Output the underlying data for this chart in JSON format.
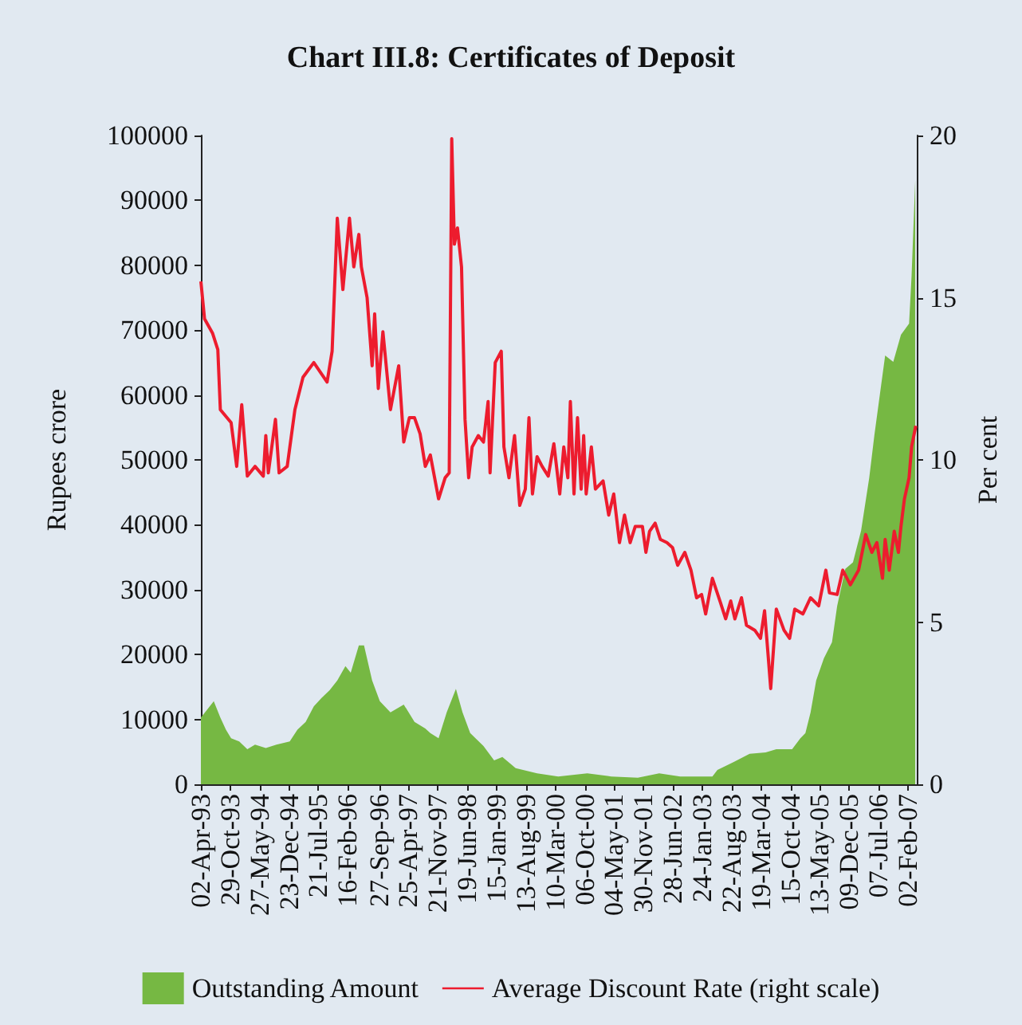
{
  "chart_data": {
    "type": "line",
    "title": "Chart III.8: Certificates of Deposit",
    "ylabel": "Rupees crore",
    "y2label": "Per cent",
    "legend": "bottom",
    "marker": "none",
    "grid": false,
    "xlim": [
      "1993-04-02",
      "2007-04-06"
    ],
    "xticks": [
      {
        "value": "1993-04-02",
        "label": "02-Apr-93"
      },
      {
        "value": "1993-10-29",
        "label": "29-Oct-93"
      },
      {
        "value": "1994-05-27",
        "label": "27-May-94"
      },
      {
        "value": "1994-12-23",
        "label": "23-Dec-94"
      },
      {
        "value": "1995-07-21",
        "label": "21-Jul-95"
      },
      {
        "value": "1996-02-16",
        "label": "16-Feb-96"
      },
      {
        "value": "1996-09-27",
        "label": "27-Sep-96"
      },
      {
        "value": "1997-04-25",
        "label": "25-Apr-97"
      },
      {
        "value": "1997-11-21",
        "label": "21-Nov-97"
      },
      {
        "value": "1998-06-19",
        "label": "19-Jun-98"
      },
      {
        "value": "1999-01-15",
        "label": "15-Jan-99"
      },
      {
        "value": "1999-08-13",
        "label": "13-Aug-99"
      },
      {
        "value": "2000-03-10",
        "label": "10-Mar-00"
      },
      {
        "value": "2000-10-06",
        "label": "06-Oct-00"
      },
      {
        "value": "2001-05-04",
        "label": "04-May-01"
      },
      {
        "value": "2001-11-30",
        "label": "30-Nov-01"
      },
      {
        "value": "2002-06-28",
        "label": "28-Jun-02"
      },
      {
        "value": "2003-01-24",
        "label": "24-Jan-03"
      },
      {
        "value": "2003-08-22",
        "label": "22-Aug-03"
      },
      {
        "value": "2004-03-19",
        "label": "19-Mar-04"
      },
      {
        "value": "2004-10-15",
        "label": "15-Oct-04"
      },
      {
        "value": "2005-05-13",
        "label": "13-May-05"
      },
      {
        "value": "2005-12-09",
        "label": "09-Dec-05"
      },
      {
        "value": "2006-07-07",
        "label": "07-Jul-06"
      },
      {
        "value": "2007-02-02",
        "label": "02-Feb-07"
      }
    ],
    "ylim": [
      0,
      100000
    ],
    "yticks": [
      0,
      10000,
      20000,
      30000,
      40000,
      50000,
      60000,
      70000,
      80000,
      90000,
      100000
    ],
    "y2lim": [
      0,
      20
    ],
    "y2ticks": [
      0,
      5,
      10,
      15,
      20
    ],
    "series": [
      {
        "name": "Outstanding Amount",
        "type": "area",
        "axis": "y",
        "color": "#76b843",
        "x": [
          "1993-04-02",
          "1993-05-16",
          "1993-07-03",
          "1993-08-19",
          "1993-09-28",
          "1993-11-04",
          "1994-01-01",
          "1994-02-28",
          "1994-04-24",
          "1994-07-10",
          "1994-09-24",
          "1994-12-28",
          "1995-02-21",
          "1995-04-21",
          "1995-06-18",
          "1995-08-12",
          "1995-10-09",
          "1995-12-03",
          "1996-01-30",
          "1996-03-08",
          "1996-05-05",
          "1996-06-11",
          "1996-08-08",
          "1996-10-02",
          "1996-12-17",
          "1997-03-22",
          "1997-06-07",
          "1997-08-23",
          "1997-09-28",
          "1997-11-26",
          "1998-01-23",
          "1998-03-30",
          "1998-05-16",
          "1998-07-10",
          "1998-10-13",
          "1998-12-28",
          "1999-02-25",
          "1999-05-31",
          "1999-10-31",
          "2000-03-30",
          "2000-10-24",
          "2001-04-13",
          "2001-10-20",
          "2002-03-22",
          "2002-08-19",
          "2003-01-19",
          "2003-04-06",
          "2003-05-12",
          "2003-09-03",
          "2003-12-28",
          "2004-04-21",
          "2004-07-06",
          "2004-10-27",
          "2004-12-25",
          "2005-01-30",
          "2005-03-08",
          "2005-04-17",
          "2005-06-11",
          "2005-08-08",
          "2005-09-14",
          "2005-11-11",
          "2006-01-05",
          "2006-03-04",
          "2006-05-01",
          "2006-06-07",
          "2006-07-17",
          "2006-08-23",
          "2006-10-20",
          "2006-12-14",
          "2007-02-10",
          "2007-02-28",
          "2007-03-26"
        ],
        "values": [
          10300,
          11500,
          12800,
          10300,
          8400,
          7100,
          6600,
          5400,
          6100,
          5600,
          6100,
          6600,
          8400,
          9600,
          12000,
          13300,
          14500,
          16000,
          18200,
          17200,
          21400,
          21400,
          16000,
          12800,
          11100,
          12300,
          9600,
          8600,
          7900,
          7100,
          11100,
          14700,
          11100,
          7900,
          5900,
          3700,
          4200,
          2500,
          1700,
          1200,
          1700,
          1200,
          1000,
          1700,
          1200,
          1200,
          1200,
          2200,
          3400,
          4700,
          4900,
          5400,
          5400,
          7100,
          7900,
          11100,
          16000,
          19400,
          21900,
          27500,
          33200,
          34200,
          39100,
          47200,
          53800,
          60200,
          66100,
          65100,
          69300,
          71000,
          78400,
          93100
        ]
      },
      {
        "name": "Average Discount Rate (right scale)",
        "axis": "y2",
        "color": "#ed1c2e",
        "x": [
          "1993-04-02",
          "1993-04-28",
          "1993-06-25",
          "1993-08-01",
          "1993-08-19",
          "1993-11-04",
          "1993-12-14",
          "1994-01-19",
          "1994-02-28",
          "1994-04-24",
          "1994-06-22",
          "1994-07-10",
          "1994-07-28",
          "1994-09-17",
          "1994-10-13",
          "1994-12-10",
          "1995-02-03",
          "1995-04-02",
          "1995-06-18",
          "1995-09-21",
          "1995-10-27",
          "1995-12-03",
          "1996-01-12",
          "1996-02-28",
          "1996-03-30",
          "1996-05-05",
          "1996-05-23",
          "1996-07-03",
          "1996-08-08",
          "1996-08-26",
          "1996-09-21",
          "1996-10-24",
          "1996-12-17",
          "1997-02-14",
          "1997-03-22",
          "1997-05-01",
          "1997-06-07",
          "1997-07-17",
          "1997-08-23",
          "1997-09-28",
          "1997-11-26",
          "1998-01-12",
          "1998-02-10",
          "1998-02-28",
          "1998-03-19",
          "1998-04-10",
          "1998-05-09",
          "1998-06-03",
          "1998-06-29",
          "1998-07-24",
          "1998-09-06",
          "1998-10-13",
          "1998-11-15",
          "1998-11-29",
          "1999-01-05",
          "1999-02-17",
          "1999-03-08",
          "1999-04-13",
          "1999-05-23",
          "1999-06-29",
          "1999-08-08",
          "1999-09-03",
          "1999-09-28",
          "1999-10-31",
          "1999-12-06",
          "2000-01-19",
          "2000-02-28",
          "2000-04-10",
          "2000-05-09",
          "2000-06-07",
          "2000-06-25",
          "2000-07-21",
          "2000-08-15",
          "2000-09-10",
          "2000-09-28",
          "2000-10-16",
          "2000-11-22",
          "2000-12-21",
          "2001-02-14",
          "2001-03-26",
          "2001-05-01",
          "2001-06-11",
          "2001-07-17",
          "2001-08-26",
          "2001-10-02",
          "2001-11-22",
          "2001-12-17",
          "2002-01-12",
          "2002-02-21",
          "2002-03-30",
          "2002-05-16",
          "2002-06-25",
          "2002-08-01",
          "2002-09-21",
          "2002-11-04",
          "2002-12-14",
          "2003-01-19",
          "2003-02-17",
          "2003-04-06",
          "2003-06-03",
          "2003-07-10",
          "2003-08-15",
          "2003-09-14",
          "2003-10-31",
          "2003-12-06",
          "2004-02-03",
          "2004-03-15",
          "2004-04-13",
          "2004-05-09",
          "2004-05-27",
          "2004-07-06",
          "2004-08-30",
          "2004-10-09",
          "2004-11-15",
          "2005-01-12",
          "2005-03-08",
          "2005-05-05",
          "2005-06-25",
          "2005-07-21",
          "2005-09-14",
          "2005-10-24",
          "2005-12-17",
          "2006-02-14",
          "2006-04-06",
          "2006-05-20",
          "2006-06-25",
          "2006-08-04",
          "2006-08-23",
          "2006-09-21",
          "2006-10-27",
          "2006-11-26",
          "2006-12-14",
          "2007-01-08",
          "2007-02-10",
          "2007-02-28",
          "2007-03-30"
        ],
        "values": [
          15.5,
          14.35,
          13.9,
          13.4,
          11.55,
          11.15,
          9.8,
          11.7,
          9.5,
          9.8,
          9.5,
          10.75,
          9.6,
          11.25,
          9.6,
          9.8,
          11.55,
          12.55,
          13.0,
          12.4,
          13.35,
          17.45,
          15.25,
          17.45,
          15.95,
          16.95,
          15.95,
          15.0,
          12.9,
          14.5,
          12.2,
          13.95,
          11.55,
          12.9,
          10.55,
          11.3,
          11.3,
          10.8,
          9.8,
          10.15,
          8.8,
          9.45,
          9.6,
          19.9,
          16.65,
          17.15,
          15.95,
          11.25,
          9.45,
          10.4,
          10.75,
          10.55,
          11.8,
          9.6,
          13.0,
          13.35,
          10.4,
          9.45,
          10.75,
          8.6,
          9.1,
          11.3,
          8.95,
          10.1,
          9.8,
          9.5,
          10.5,
          8.95,
          10.4,
          9.45,
          11.8,
          8.95,
          11.3,
          9.1,
          10.75,
          8.95,
          10.4,
          9.1,
          9.35,
          8.3,
          8.95,
          7.45,
          8.3,
          7.45,
          7.95,
          7.95,
          7.15,
          7.8,
          8.05,
          7.55,
          7.45,
          7.3,
          6.75,
          7.15,
          6.6,
          5.75,
          5.85,
          5.25,
          6.35,
          5.6,
          5.1,
          5.65,
          5.1,
          5.75,
          4.9,
          4.75,
          4.5,
          5.35,
          3.95,
          2.95,
          5.4,
          4.75,
          4.5,
          5.4,
          5.25,
          5.75,
          5.5,
          6.6,
          5.9,
          5.85,
          6.6,
          6.15,
          6.6,
          7.7,
          7.15,
          7.45,
          6.35,
          7.55,
          6.6,
          7.8,
          7.15,
          7.95,
          8.8,
          9.45,
          10.4,
          11.05
        ]
      }
    ]
  }
}
